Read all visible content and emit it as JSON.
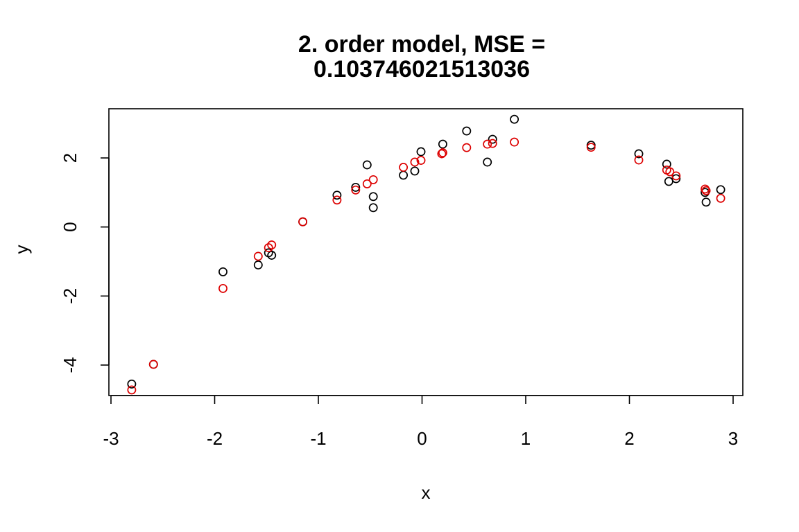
{
  "chart_data": {
    "type": "scatter",
    "title": "2. order model, MSE =",
    "subtitle": "0.103746021513036",
    "xlabel": "x",
    "ylabel": "y",
    "xlim": [
      -3,
      3
    ],
    "ylim": [
      -4.8,
      3.4
    ],
    "xticks": [
      -3,
      -2,
      -1,
      0,
      1,
      2,
      3
    ],
    "xtick_labels": [
      "-3",
      "-2",
      "-1",
      "0",
      "1",
      "2",
      "3"
    ],
    "yticks": [
      -4,
      -2,
      0,
      2
    ],
    "ytick_labels": [
      "-4",
      "-2",
      "0",
      "2"
    ],
    "grid": false,
    "legend": "none",
    "marker": "open-circle",
    "series": [
      {
        "color": "#000000",
        "points": [
          [
            -2.8,
            -4.55
          ],
          [
            -2.59,
            -3.98
          ],
          [
            -1.92,
            -1.3
          ],
          [
            -1.58,
            -1.1
          ],
          [
            -1.48,
            -0.75
          ],
          [
            -1.45,
            -0.82
          ],
          [
            -1.15,
            0.15
          ],
          [
            -0.82,
            0.92
          ],
          [
            -0.64,
            1.15
          ],
          [
            -0.53,
            1.8
          ],
          [
            -0.47,
            0.88
          ],
          [
            -0.47,
            0.56
          ],
          [
            -0.18,
            1.5
          ],
          [
            -0.07,
            1.62
          ],
          [
            -0.01,
            2.18
          ],
          [
            0.2,
            2.4
          ],
          [
            0.43,
            2.78
          ],
          [
            0.63,
            1.88
          ],
          [
            0.68,
            2.54
          ],
          [
            0.89,
            3.12
          ],
          [
            1.63,
            2.37
          ],
          [
            2.09,
            2.12
          ],
          [
            2.36,
            1.82
          ],
          [
            2.38,
            1.32
          ],
          [
            2.45,
            1.4
          ],
          [
            2.73,
            1.0
          ],
          [
            2.74,
            0.72
          ],
          [
            2.88,
            1.08
          ]
        ]
      },
      {
        "color": "#dd0000",
        "points": [
          [
            -2.8,
            -4.72
          ],
          [
            -2.59,
            -3.98
          ],
          [
            -1.92,
            -1.78
          ],
          [
            -1.58,
            -0.85
          ],
          [
            -1.48,
            -0.6
          ],
          [
            -1.45,
            -0.52
          ],
          [
            -1.15,
            0.15
          ],
          [
            -0.82,
            0.78
          ],
          [
            -0.64,
            1.07
          ],
          [
            -0.53,
            1.25
          ],
          [
            -0.47,
            1.37
          ],
          [
            -0.18,
            1.73
          ],
          [
            -0.07,
            1.88
          ],
          [
            -0.01,
            1.93
          ],
          [
            0.19,
            2.12
          ],
          [
            0.2,
            2.15
          ],
          [
            0.43,
            2.3
          ],
          [
            0.63,
            2.4
          ],
          [
            0.68,
            2.42
          ],
          [
            0.89,
            2.46
          ],
          [
            1.63,
            2.31
          ],
          [
            2.09,
            1.94
          ],
          [
            2.36,
            1.65
          ],
          [
            2.39,
            1.6
          ],
          [
            2.45,
            1.48
          ],
          [
            2.73,
            1.1
          ],
          [
            2.74,
            1.05
          ],
          [
            2.88,
            0.83
          ]
        ]
      }
    ]
  }
}
